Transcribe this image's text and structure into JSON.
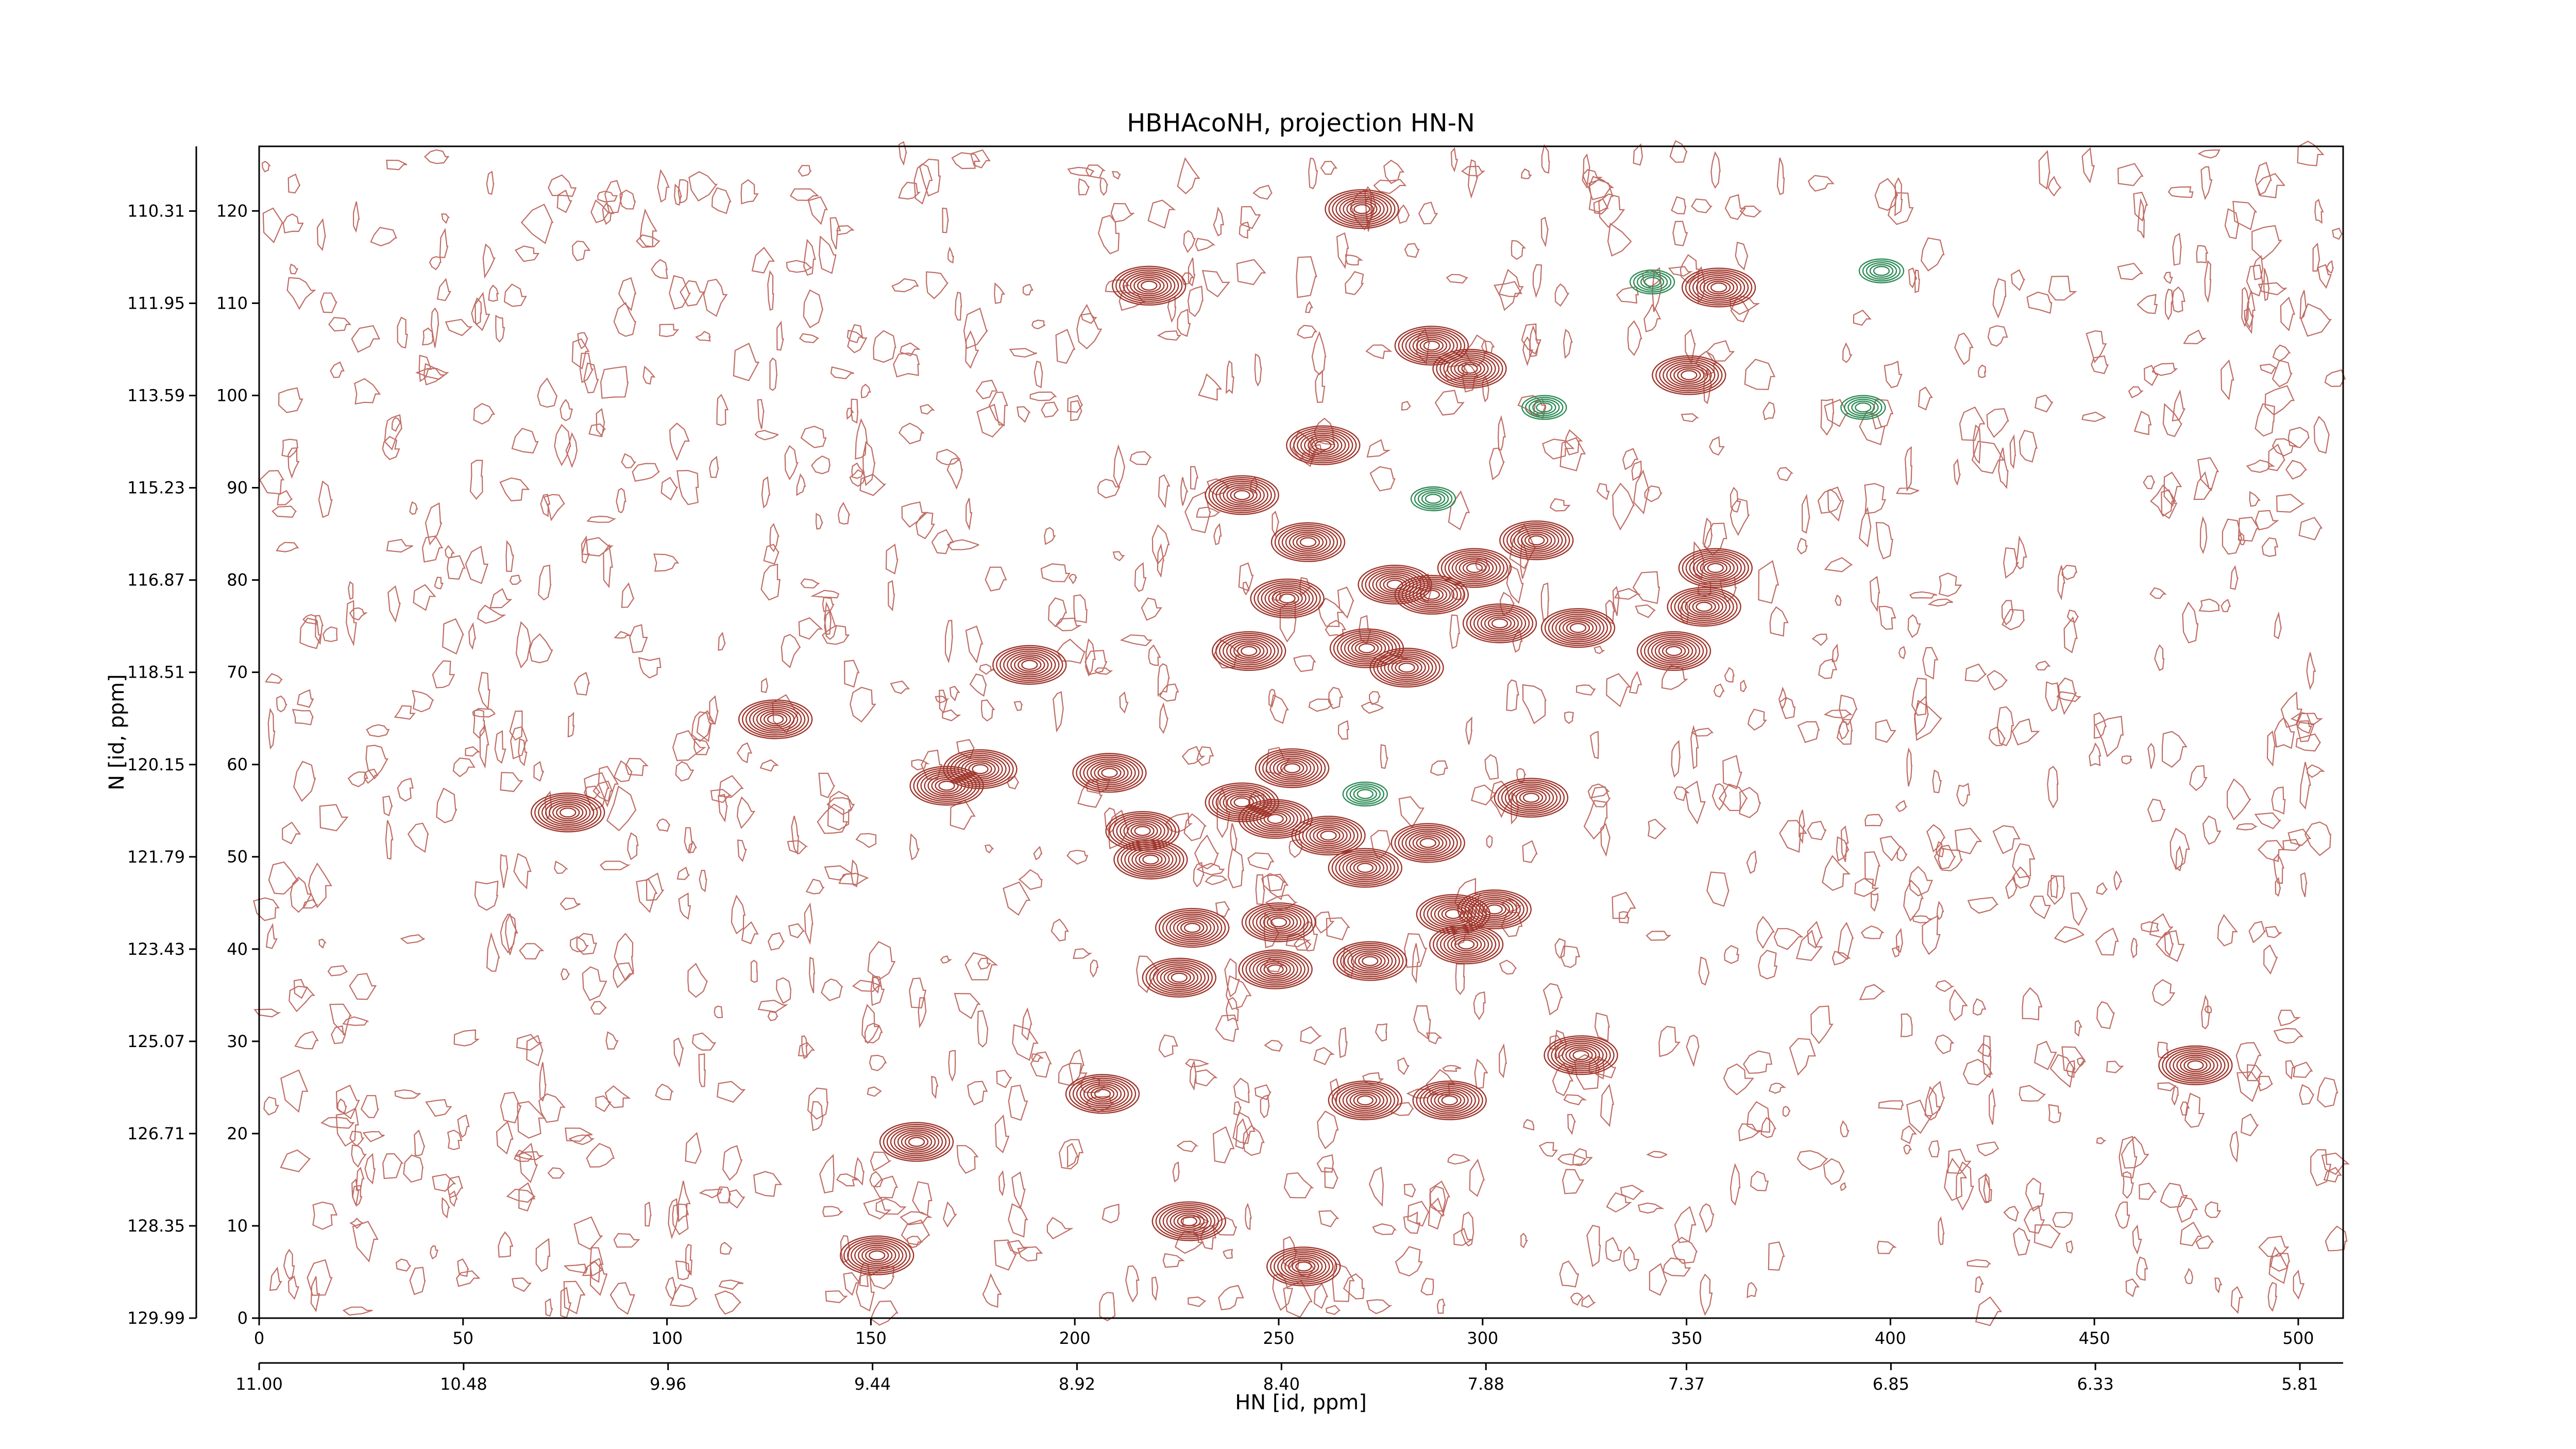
{
  "chart_data": {
    "type": "scatter",
    "title": "HBHAcoNH, projection HN-N",
    "xlabel": "HN [id, ppm]",
    "ylabel": "N [id, ppm]",
    "xlim": [
      0,
      511
    ],
    "ylim": [
      0,
      127
    ],
    "xticks": [
      0,
      50,
      100,
      150,
      200,
      250,
      300,
      350,
      400,
      450,
      500
    ],
    "yticks": [
      0,
      10,
      20,
      30,
      40,
      50,
      60,
      70,
      80,
      90,
      100,
      110,
      120
    ],
    "x2lim": [
      11.0,
      5.7
    ],
    "x2ticks": [
      {
        "value": 11,
        "label": "11.00"
      },
      10.48,
      9.96,
      9.44,
      8.92,
      {
        "value": 8.4,
        "label": "8.40"
      },
      7.88,
      7.37,
      6.85,
      6.33,
      5.81
    ],
    "y2lim": [
      129.99,
      109.16
    ],
    "y2ticks": [
      129.99,
      128.35,
      126.71,
      125.07,
      123.43,
      121.79,
      120.15,
      118.51,
      116.87,
      115.23,
      113.59,
      111.95,
      110.31
    ],
    "series": [
      {
        "color": "#a0362c",
        "x": [
          75.7,
          126.6,
          168.6,
          176.8,
          188.9,
          218.2,
          208.5,
          216.6,
          218.6,
          228.8,
          225.6,
          228.0,
          206.8,
          161.2,
          151.5,
          256.1,
          270.4,
          260.9,
          241.0,
          257.2,
          252.1,
          242.7,
          278.5,
          287.5,
          296.8,
          287.5,
          298.0,
          313.2,
          304.2,
          323.4,
          271.6,
          281.4,
          357.9,
          350.6,
          357.1,
          354.3,
          346.9,
          253.3,
          241.0,
          249.2,
          262.2,
          271.2,
          286.6,
          311.9,
          250.0,
          249.2,
          272.4,
          292.8,
          302.9,
          296.0,
          324.1,
          291.9,
          271.2,
          474.8
        ],
        "values": [
          54.8,
          64.9,
          57.7,
          59.5,
          70.8,
          111.9,
          59.1,
          52.8,
          49.7,
          42.3,
          36.9,
          10.5,
          24.3,
          19.1,
          6.8,
          5.6,
          120.2,
          94.6,
          89.2,
          84.1,
          78.0,
          72.3,
          79.5,
          78.4,
          102.9,
          105.4,
          81.3,
          84.3,
          75.3,
          74.8,
          72.6,
          70.5,
          111.7,
          102.2,
          81.3,
          77.1,
          72.3,
          59.6,
          55.9,
          54.1,
          52.3,
          48.8,
          51.5,
          56.4,
          42.9,
          37.8,
          38.7,
          43.8,
          44.3,
          40.5,
          28.5,
          23.6,
          23.6,
          27.4
        ]
      },
      {
        "color": "#2e8b57",
        "x": [
          341.6,
          397.8,
          271.2,
          287.9,
          315.1,
          393.3
        ],
        "values": [
          112.3,
          113.5,
          56.8,
          88.8,
          98.7,
          98.7
        ]
      }
    ]
  }
}
